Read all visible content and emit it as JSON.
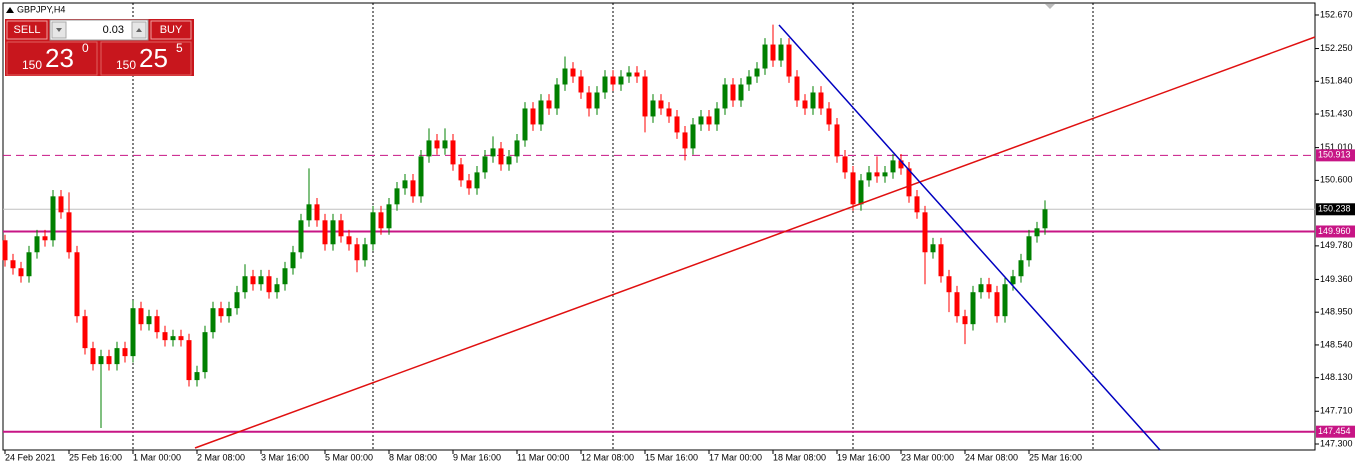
{
  "chart_data": {
    "type": "candlestick",
    "title": "GBPJPY,H4",
    "categories": [
      "24 Feb 2021",
      null,
      null,
      null,
      null,
      null,
      null,
      null,
      "25 Feb 16:00",
      null,
      null,
      null,
      null,
      null,
      null,
      null,
      "1 Mar 00:00",
      null,
      null,
      null,
      null,
      null,
      null,
      null,
      "2 Mar 08:00",
      null,
      null,
      null,
      null,
      null,
      null,
      null,
      "3 Mar 16:00",
      null,
      null,
      null,
      null,
      null,
      null,
      null,
      "5 Mar 00:00",
      null,
      null,
      null,
      null,
      null,
      null,
      null,
      "8 Mar 08:00",
      null,
      null,
      null,
      null,
      null,
      null,
      null,
      "9 Mar 16:00",
      null,
      null,
      null,
      null,
      null,
      null,
      null,
      "11 Mar 00:00",
      null,
      null,
      null,
      null,
      null,
      null,
      null,
      "12 Mar 08:00",
      null,
      null,
      null,
      null,
      null,
      null,
      null,
      "15 Mar 16:00",
      null,
      null,
      null,
      null,
      null,
      null,
      null,
      "17 Mar 00:00",
      null,
      null,
      null,
      null,
      null,
      null,
      null,
      "18 Mar 08:00",
      null,
      null,
      null,
      null,
      null,
      null,
      null,
      "19 Mar 16:00",
      null,
      null,
      null,
      null,
      null,
      null,
      null,
      "23 Mar 00:00",
      null,
      null,
      null,
      null,
      null,
      null,
      null,
      "24 Mar 08:00",
      null,
      null,
      null,
      null,
      null,
      null,
      null,
      "25 Mar 16:00",
      null,
      null
    ],
    "candles": [
      [
        149.85,
        149.92,
        149.52,
        149.6
      ],
      [
        149.6,
        149.68,
        149.42,
        149.5
      ],
      [
        149.5,
        149.58,
        149.32,
        149.4
      ],
      [
        149.4,
        149.78,
        149.32,
        149.7
      ],
      [
        149.7,
        149.98,
        149.62,
        149.9
      ],
      [
        149.9,
        149.98,
        149.77,
        149.85
      ],
      [
        149.85,
        150.48,
        149.77,
        150.4
      ],
      [
        150.4,
        150.48,
        150.12,
        150.2
      ],
      [
        150.2,
        150.45,
        149.62,
        149.7
      ],
      [
        149.7,
        149.78,
        148.82,
        148.9
      ],
      [
        148.9,
        148.98,
        148.42,
        148.5
      ],
      [
        148.5,
        148.58,
        148.22,
        148.3
      ],
      [
        148.3,
        148.48,
        147.5,
        148.4
      ],
      [
        148.4,
        148.48,
        148.22,
        148.3
      ],
      [
        148.3,
        148.58,
        148.22,
        148.5
      ],
      [
        148.5,
        148.58,
        148.32,
        148.4
      ],
      [
        148.4,
        149.1,
        148.32,
        149.0
      ],
      [
        149.0,
        149.08,
        148.72,
        148.8
      ],
      [
        148.8,
        148.98,
        148.72,
        148.9
      ],
      [
        148.9,
        148.98,
        148.62,
        148.7
      ],
      [
        148.7,
        148.78,
        148.52,
        148.6
      ],
      [
        148.6,
        148.73,
        148.52,
        148.65
      ],
      [
        148.65,
        148.73,
        148.52,
        148.6
      ],
      [
        148.6,
        148.68,
        148.02,
        148.1
      ],
      [
        148.1,
        148.28,
        148.02,
        148.2
      ],
      [
        148.2,
        148.78,
        148.12,
        148.7
      ],
      [
        148.7,
        149.08,
        148.62,
        149.0
      ],
      [
        149.0,
        149.08,
        148.82,
        148.9
      ],
      [
        148.9,
        149.08,
        148.82,
        149.0
      ],
      [
        149.0,
        149.28,
        148.92,
        149.2
      ],
      [
        149.2,
        149.55,
        149.12,
        149.4
      ],
      [
        149.4,
        149.48,
        149.22,
        149.3
      ],
      [
        149.3,
        149.48,
        149.22,
        149.4
      ],
      [
        149.4,
        149.48,
        149.12,
        149.2
      ],
      [
        149.2,
        149.38,
        149.12,
        149.3
      ],
      [
        149.3,
        149.58,
        149.22,
        149.5
      ],
      [
        149.5,
        149.78,
        149.42,
        149.7
      ],
      [
        149.7,
        150.18,
        149.62,
        150.1
      ],
      [
        150.1,
        150.75,
        150.02,
        150.3
      ],
      [
        150.3,
        150.38,
        150.02,
        150.1
      ],
      [
        150.1,
        150.18,
        149.72,
        149.8
      ],
      [
        149.8,
        150.18,
        149.72,
        150.1
      ],
      [
        150.1,
        150.18,
        149.82,
        149.9
      ],
      [
        149.9,
        149.98,
        149.72,
        149.8
      ],
      [
        149.8,
        149.88,
        149.45,
        149.6
      ],
      [
        149.6,
        149.88,
        149.52,
        149.8
      ],
      [
        149.8,
        150.28,
        149.72,
        150.2
      ],
      [
        150.2,
        150.28,
        149.92,
        150.0
      ],
      [
        150.0,
        150.38,
        149.92,
        150.3
      ],
      [
        150.3,
        150.58,
        150.22,
        150.5
      ],
      [
        150.5,
        150.68,
        150.42,
        150.6
      ],
      [
        150.6,
        150.68,
        150.32,
        150.4
      ],
      [
        150.4,
        150.98,
        150.32,
        150.9
      ],
      [
        150.9,
        151.25,
        150.82,
        151.1
      ],
      [
        151.1,
        151.18,
        150.92,
        151.0
      ],
      [
        151.0,
        151.25,
        150.92,
        151.1
      ],
      [
        151.1,
        151.18,
        150.72,
        150.8
      ],
      [
        150.8,
        150.88,
        150.52,
        150.6
      ],
      [
        150.6,
        150.68,
        150.42,
        150.5
      ],
      [
        150.5,
        150.78,
        150.42,
        150.7
      ],
      [
        150.7,
        150.98,
        150.62,
        150.9
      ],
      [
        150.9,
        151.15,
        150.82,
        151.0
      ],
      [
        151.0,
        151.08,
        150.72,
        150.8
      ],
      [
        150.8,
        150.98,
        150.72,
        150.9
      ],
      [
        150.9,
        151.18,
        150.82,
        151.1
      ],
      [
        151.1,
        151.58,
        151.02,
        151.5
      ],
      [
        151.5,
        151.58,
        151.22,
        151.3
      ],
      [
        151.3,
        151.68,
        151.22,
        151.6
      ],
      [
        151.6,
        151.68,
        151.42,
        151.5
      ],
      [
        151.5,
        151.88,
        151.42,
        151.8
      ],
      [
        151.8,
        152.15,
        151.72,
        152.0
      ],
      [
        152.0,
        152.08,
        151.82,
        151.9
      ],
      [
        151.9,
        151.98,
        151.62,
        151.7
      ],
      [
        151.7,
        151.78,
        151.4,
        151.5
      ],
      [
        151.5,
        151.78,
        151.42,
        151.7
      ],
      [
        151.7,
        151.98,
        151.62,
        151.9
      ],
      [
        151.9,
        151.98,
        151.72,
        151.8
      ],
      [
        151.8,
        151.98,
        151.72,
        151.9
      ],
      [
        151.9,
        152.03,
        151.82,
        151.95
      ],
      [
        151.95,
        152.03,
        151.82,
        151.9
      ],
      [
        151.9,
        151.98,
        151.2,
        151.4
      ],
      [
        151.4,
        151.68,
        151.32,
        151.6
      ],
      [
        151.6,
        151.68,
        151.42,
        151.5
      ],
      [
        151.5,
        151.58,
        151.32,
        151.4
      ],
      [
        151.4,
        151.48,
        151.12,
        151.2
      ],
      [
        151.2,
        151.28,
        150.85,
        151.0
      ],
      [
        151.0,
        151.38,
        150.92,
        151.3
      ],
      [
        151.3,
        151.48,
        151.22,
        151.4
      ],
      [
        151.4,
        151.48,
        151.22,
        151.3
      ],
      [
        151.3,
        151.58,
        151.22,
        151.5
      ],
      [
        151.5,
        151.88,
        151.42,
        151.8
      ],
      [
        151.8,
        151.88,
        151.52,
        151.6
      ],
      [
        151.6,
        151.88,
        151.52,
        151.8
      ],
      [
        151.8,
        151.98,
        151.72,
        151.9
      ],
      [
        151.9,
        152.08,
        151.82,
        152.0
      ],
      [
        152.0,
        152.38,
        151.92,
        152.3
      ],
      [
        152.3,
        152.55,
        152.02,
        152.1
      ],
      [
        152.1,
        152.38,
        152.02,
        152.3
      ],
      [
        152.3,
        152.38,
        151.82,
        151.9
      ],
      [
        151.9,
        151.98,
        151.52,
        151.6
      ],
      [
        151.6,
        151.68,
        151.42,
        151.5
      ],
      [
        151.5,
        151.78,
        151.42,
        151.7
      ],
      [
        151.7,
        151.78,
        151.42,
        151.5
      ],
      [
        151.5,
        151.58,
        151.22,
        151.3
      ],
      [
        151.3,
        151.38,
        150.82,
        150.9
      ],
      [
        150.9,
        150.98,
        150.62,
        150.7
      ],
      [
        150.7,
        150.78,
        150.22,
        150.3
      ],
      [
        150.3,
        150.68,
        150.22,
        150.6
      ],
      [
        150.6,
        150.78,
        150.52,
        150.7
      ],
      [
        150.7,
        150.9,
        150.57,
        150.65
      ],
      [
        150.65,
        150.78,
        150.57,
        150.7
      ],
      [
        150.7,
        150.93,
        150.62,
        150.85
      ],
      [
        150.85,
        150.93,
        150.67,
        150.75
      ],
      [
        150.75,
        150.83,
        150.32,
        150.4
      ],
      [
        150.4,
        150.48,
        150.12,
        150.2
      ],
      [
        150.2,
        150.28,
        149.3,
        149.7
      ],
      [
        149.7,
        149.88,
        149.62,
        149.8
      ],
      [
        149.8,
        149.88,
        149.32,
        149.4
      ],
      [
        149.4,
        149.48,
        148.95,
        149.2
      ],
      [
        149.2,
        149.28,
        148.82,
        148.9
      ],
      [
        148.9,
        148.98,
        148.55,
        148.8
      ],
      [
        148.8,
        149.28,
        148.72,
        149.2
      ],
      [
        149.2,
        149.38,
        149.12,
        149.3
      ],
      [
        149.3,
        149.38,
        149.12,
        149.2
      ],
      [
        149.2,
        149.28,
        148.82,
        148.9
      ],
      [
        148.9,
        149.38,
        148.82,
        149.3
      ],
      [
        149.3,
        149.48,
        149.22,
        149.4
      ],
      [
        149.4,
        149.68,
        149.32,
        149.6
      ],
      [
        149.6,
        149.98,
        149.52,
        149.9
      ],
      [
        149.9,
        150.08,
        149.82,
        150.0
      ],
      [
        150.0,
        150.35,
        149.92,
        150.238
      ]
    ],
    "up_color": "#008000",
    "down_color": "#ff0000",
    "ylim": [
      147.225,
      152.82
    ],
    "yticks": [
      {
        "value": 152.67,
        "label": "152.670"
      },
      {
        "value": 152.25,
        "label": "152.250"
      },
      {
        "value": 151.84,
        "label": "151.840"
      },
      {
        "value": 151.43,
        "label": "151.430"
      },
      {
        "value": 151.01,
        "label": "151.010"
      },
      {
        "value": 150.6,
        "label": "150.600"
      },
      {
        "value": 149.78,
        "label": "149.780"
      },
      {
        "value": 149.36,
        "label": "149.360"
      },
      {
        "value": 148.95,
        "label": "148.950"
      },
      {
        "value": 148.54,
        "label": "148.540"
      },
      {
        "value": 148.13,
        "label": "148.130"
      },
      {
        "value": 147.71,
        "label": "147.710"
      },
      {
        "value": 147.3,
        "label": "147.300"
      }
    ],
    "levels": [
      {
        "value": 150.913,
        "color": "#c71585",
        "style": "dashed"
      },
      {
        "value": 149.96,
        "label": "149.960",
        "color": "#c71585",
        "style": "solid"
      },
      {
        "value": 147.454,
        "color": "#c71585",
        "style": "solid"
      },
      {
        "value": 150.238,
        "color": "#000000",
        "style": "current"
      }
    ]
  },
  "trade_panel": {
    "sell": "SELL",
    "buy": "BUY",
    "lot": "0.03",
    "sell_price": {
      "lead": "150",
      "main": "23",
      "frac": "0"
    },
    "buy_price": {
      "lead": "150",
      "main": "25",
      "frac": "5"
    }
  }
}
